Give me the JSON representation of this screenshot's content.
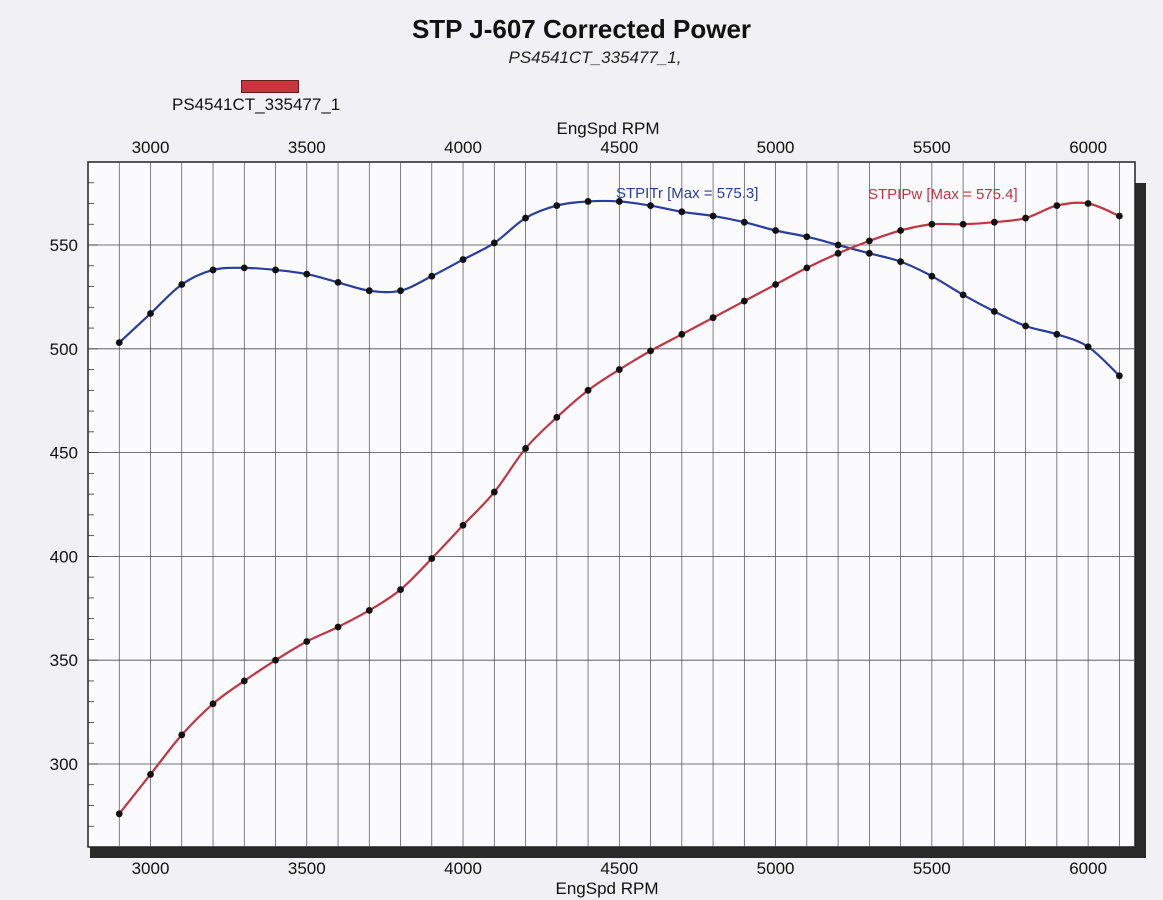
{
  "title": "STP J-607 Corrected Power",
  "subtitle": "PS4541CT_335477_1,",
  "legend": {
    "label": "PS4541CT_335477_1",
    "color": "#c9343d"
  },
  "chart_data": {
    "type": "line",
    "xlabel": "EngSpd RPM",
    "xlim": [
      2800,
      6150
    ],
    "ylim": [
      260,
      590
    ],
    "xticks": [
      3000,
      3500,
      4000,
      4500,
      5000,
      5500,
      6000
    ],
    "yticks": [
      300,
      350,
      400,
      450,
      500,
      550
    ],
    "grid": true,
    "x": [
      2900,
      3000,
      3100,
      3200,
      3300,
      3400,
      3500,
      3600,
      3700,
      3800,
      3900,
      4000,
      4100,
      4200,
      4300,
      4400,
      4500,
      4600,
      4700,
      4800,
      4900,
      5000,
      5100,
      5200,
      5300,
      5400,
      5500,
      5600,
      5700,
      5800,
      5900,
      6000,
      6100
    ],
    "series": [
      {
        "name": "STPITr",
        "annotation": "STPITr [Max = 575.3]",
        "color": "#2a3d9e",
        "values": [
          503,
          517,
          531,
          538,
          539,
          538,
          536,
          532,
          528,
          528,
          535,
          543,
          551,
          563,
          569,
          571,
          571,
          569,
          566,
          564,
          561,
          557,
          554,
          550,
          546,
          542,
          535,
          526,
          518,
          511,
          507,
          501,
          487
        ]
      },
      {
        "name": "STPIPw",
        "annotation": "STPIPw [Max = 575.4]",
        "color": "#c33442",
        "values": [
          276,
          295,
          314,
          329,
          340,
          350,
          359,
          366,
          374,
          384,
          399,
          415,
          431,
          452,
          467,
          480,
          490,
          499,
          507,
          515,
          523,
          531,
          539,
          546,
          552,
          557,
          560,
          560,
          561,
          563,
          569,
          570,
          564
        ]
      }
    ]
  }
}
